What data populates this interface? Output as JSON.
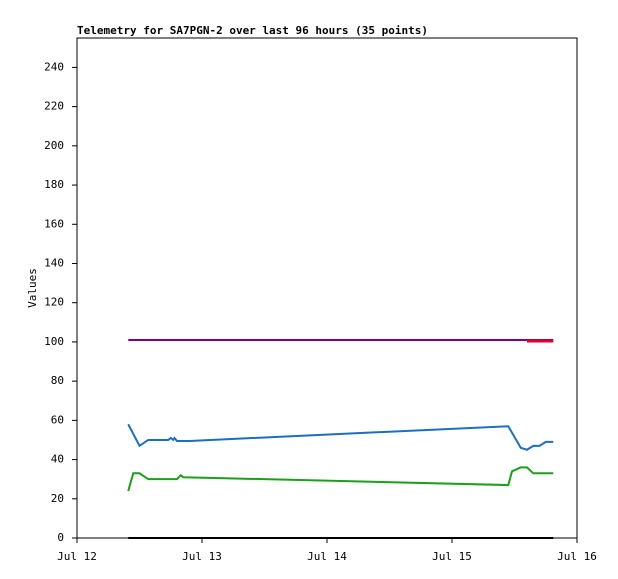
{
  "chart_data": {
    "type": "line",
    "title": "Telemetry for SA7PGN-2 over last 96 hours (35 points)",
    "y_label": "Values",
    "xlim": [
      12,
      16
    ],
    "xticks": [
      {
        "value": 12,
        "label": "Jul 12"
      },
      {
        "value": 13,
        "label": "Jul 13"
      },
      {
        "value": 14,
        "label": "Jul 14"
      },
      {
        "value": 15,
        "label": "Jul 15"
      },
      {
        "value": 16,
        "label": "Jul 16"
      }
    ],
    "ylim": [
      0,
      255
    ],
    "yticks": [
      0,
      20,
      40,
      60,
      80,
      100,
      120,
      140,
      160,
      180,
      200,
      220,
      240
    ],
    "series": [
      {
        "color": "#800080",
        "x": [
          12.41,
          15.81
        ],
        "values": [
          101,
          101
        ]
      },
      {
        "color": "#dc0030",
        "x": [
          15.6,
          15.81
        ],
        "values": [
          100.5,
          100.5
        ]
      },
      {
        "color": "#1a6fc4",
        "x": [
          12.41,
          12.5,
          12.57,
          12.73,
          12.75,
          12.77,
          12.78,
          12.8,
          12.9,
          15.45,
          15.55,
          15.6,
          15.65,
          15.7,
          15.75,
          15.81
        ],
        "values": [
          58,
          47,
          50,
          50,
          51,
          50,
          51,
          49.5,
          49.5,
          57,
          46,
          45,
          47,
          47,
          49,
          49
        ]
      },
      {
        "color": "#1aa01a",
        "x": [
          12.41,
          12.45,
          12.5,
          12.57,
          12.8,
          12.83,
          12.85,
          15.45,
          15.48,
          15.55,
          15.6,
          15.65,
          15.81
        ],
        "values": [
          24,
          33,
          33,
          30,
          30,
          32,
          31,
          27,
          34,
          36,
          36,
          33,
          33
        ]
      },
      {
        "color": "#000000",
        "x": [
          12.41,
          15.81
        ],
        "values": [
          0,
          0
        ]
      }
    ]
  }
}
